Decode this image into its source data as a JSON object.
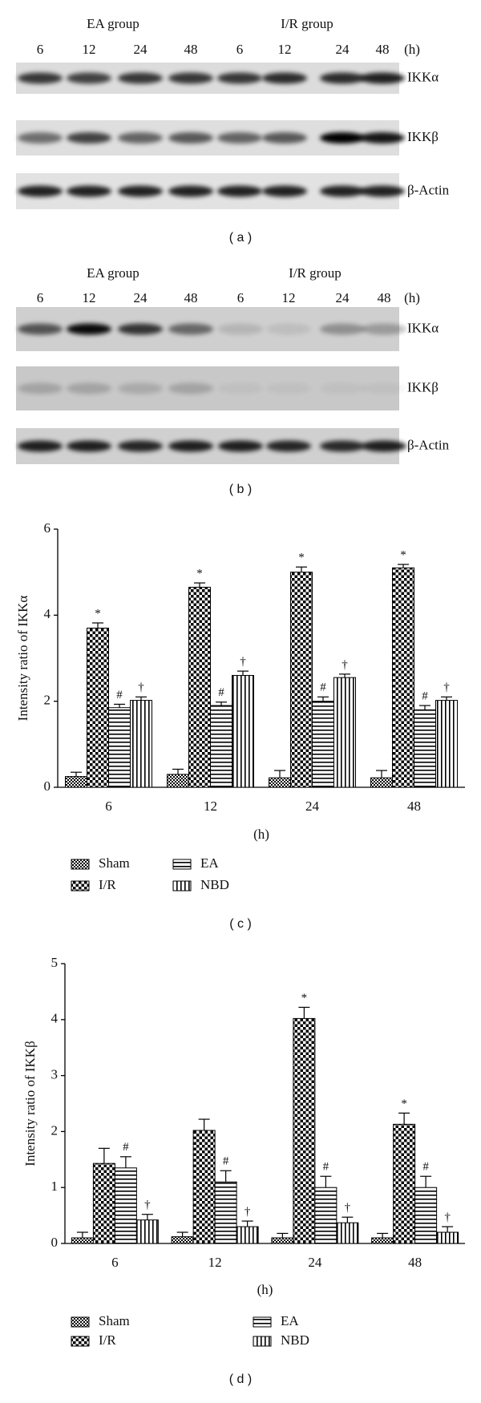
{
  "blot_a": {
    "groups": [
      "EA group",
      "I/R group"
    ],
    "lanes": [
      "6",
      "12",
      "24",
      "48",
      "6",
      "12",
      "24",
      "48"
    ],
    "unit": "(h)",
    "rows": [
      "IKKα",
      "IKKβ",
      "β-Actin"
    ],
    "caption": "( a )"
  },
  "blot_b": {
    "groups": [
      "EA group",
      "I/R group"
    ],
    "lanes": [
      "6",
      "12",
      "24",
      "48",
      "6",
      "12",
      "24",
      "48"
    ],
    "unit": "(h)",
    "rows": [
      "IKKα",
      "IKKβ",
      "β-Actin"
    ],
    "caption": "( b )"
  },
  "chart_data": [
    {
      "type": "bar",
      "ylabel": "Intensity ratio of IKKα",
      "xlabel": "(h)",
      "caption": "( c )",
      "categories": [
        "6",
        "12",
        "24",
        "48"
      ],
      "ylim": [
        0,
        6
      ],
      "yticks": [
        0,
        2,
        4,
        6
      ],
      "series": [
        {
          "name": "Sham",
          "color": "#000000",
          "pattern": "checker-small",
          "values": [
            0.25,
            0.3,
            0.22,
            0.22
          ],
          "errors": [
            0.1,
            0.12,
            0.17,
            0.17
          ],
          "annotations": [
            null,
            null,
            null,
            null
          ]
        },
        {
          "name": "I/R",
          "color": "#000000",
          "pattern": "checker-large",
          "values": [
            3.7,
            4.65,
            5.0,
            5.1
          ],
          "errors": [
            0.12,
            0.1,
            0.12,
            0.08
          ],
          "annotations": [
            "*",
            "*",
            "*",
            "*"
          ]
        },
        {
          "name": "EA",
          "color": "#000000",
          "pattern": "hstripe",
          "values": [
            1.85,
            1.9,
            2.0,
            1.8
          ],
          "errors": [
            0.08,
            0.08,
            0.1,
            0.1
          ],
          "annotations": [
            "#",
            "#",
            "#",
            "#"
          ]
        },
        {
          "name": "NBD",
          "color": "#000000",
          "pattern": "vstripe",
          "values": [
            2.02,
            2.6,
            2.55,
            2.02
          ],
          "errors": [
            0.08,
            0.1,
            0.08,
            0.08
          ],
          "annotations": [
            "†",
            "†",
            "†",
            "†"
          ]
        }
      ]
    },
    {
      "type": "bar",
      "ylabel": "Intensity ratio of IKKβ",
      "xlabel": "(h)",
      "caption": "( d )",
      "categories": [
        "6",
        "12",
        "24",
        "48"
      ],
      "ylim": [
        0,
        5
      ],
      "yticks": [
        0,
        1,
        2,
        3,
        4,
        5
      ],
      "series": [
        {
          "name": "Sham",
          "color": "#000000",
          "pattern": "checker-small",
          "values": [
            0.1,
            0.12,
            0.1,
            0.1
          ],
          "errors": [
            0.1,
            0.08,
            0.08,
            0.08
          ],
          "annotations": [
            null,
            null,
            null,
            null
          ]
        },
        {
          "name": "I/R",
          "color": "#000000",
          "pattern": "checker-large",
          "values": [
            1.43,
            2.02,
            4.02,
            2.13
          ],
          "errors": [
            0.27,
            0.2,
            0.2,
            0.2
          ],
          "annotations": [
            null,
            null,
            "*",
            "*"
          ]
        },
        {
          "name": "EA",
          "color": "#000000",
          "pattern": "hstripe",
          "values": [
            1.35,
            1.1,
            1.0,
            1.0
          ],
          "errors": [
            0.2,
            0.2,
            0.2,
            0.2
          ],
          "annotations": [
            "#",
            "#",
            "#",
            "#"
          ]
        },
        {
          "name": "NBD",
          "color": "#000000",
          "pattern": "vstripe",
          "values": [
            0.42,
            0.3,
            0.37,
            0.2
          ],
          "errors": [
            0.1,
            0.1,
            0.1,
            0.1
          ],
          "annotations": [
            "†",
            "†",
            "†",
            "†"
          ]
        }
      ]
    }
  ]
}
